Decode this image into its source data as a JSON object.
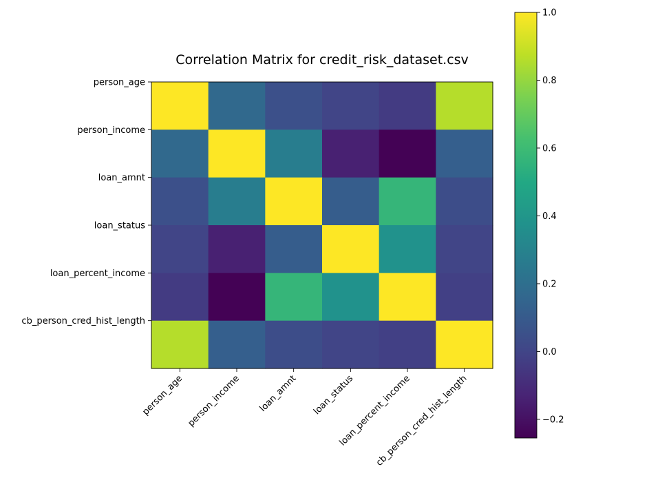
{
  "chart_data": {
    "type": "heatmap",
    "title": "Correlation Matrix for credit_risk_dataset.csv",
    "xlabel": "",
    "ylabel": "",
    "colormap": "viridis",
    "grid": false,
    "legend": "none",
    "x_categories": [
      "person_age",
      "person_income",
      "loan_amnt",
      "loan_status",
      "loan_percent_income",
      "cb_person_cred_hist_length"
    ],
    "y_categories": [
      "person_age",
      "person_income",
      "loan_amnt",
      "loan_status",
      "loan_percent_income",
      "cb_person_cred_hist_length"
    ],
    "values": [
      [
        1.0,
        0.17,
        0.05,
        0.0,
        -0.04,
        0.86
      ],
      [
        0.17,
        1.0,
        0.27,
        -0.14,
        -0.25,
        0.12
      ],
      [
        0.05,
        0.27,
        1.0,
        0.11,
        0.57,
        0.04
      ],
      [
        0.0,
        -0.14,
        0.11,
        1.0,
        0.38,
        0.0
      ],
      [
        -0.04,
        -0.25,
        0.57,
        0.38,
        1.0,
        -0.02
      ],
      [
        0.86,
        0.12,
        0.04,
        0.0,
        -0.02,
        1.0
      ]
    ],
    "colorbar": {
      "vmin": -0.255,
      "vmax": 1.0,
      "ticks": [
        -0.2,
        0.0,
        0.2,
        0.4,
        0.6,
        0.8,
        1.0
      ],
      "tick_labels": [
        "−0.2",
        "0.0",
        "0.2",
        "0.4",
        "0.6",
        "0.8",
        "1.0"
      ]
    }
  }
}
